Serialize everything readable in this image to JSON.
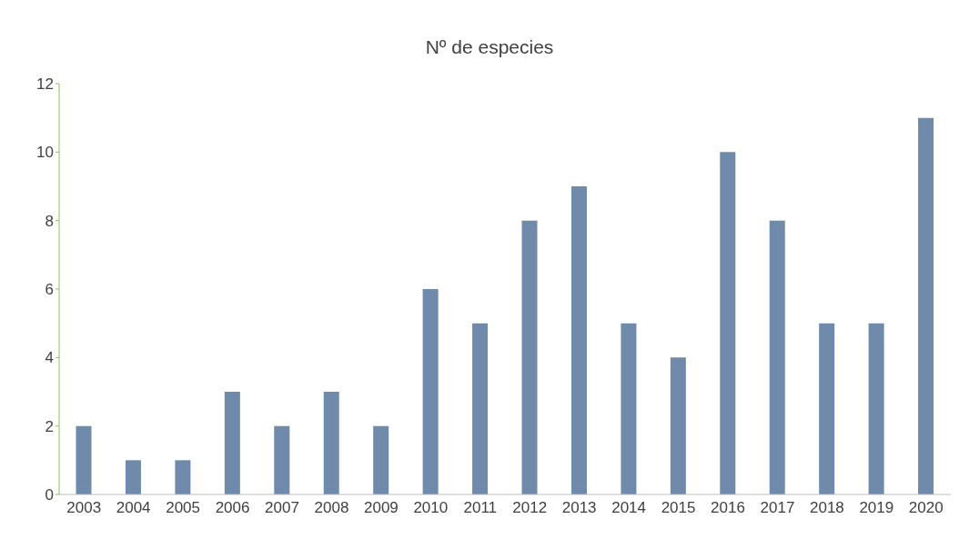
{
  "chart_data": {
    "type": "bar",
    "title": "Nº de especies",
    "categories": [
      "2003",
      "2004",
      "2005",
      "2006",
      "2007",
      "2008",
      "2009",
      "2010",
      "2011",
      "2012",
      "2013",
      "2014",
      "2015",
      "2016",
      "2017",
      "2018",
      "2019",
      "2020"
    ],
    "values": [
      2,
      1,
      1,
      3,
      2,
      3,
      2,
      6,
      5,
      8,
      9,
      5,
      4,
      10,
      8,
      5,
      5,
      11
    ],
    "color": "#6f8aab",
    "ylim": [
      0,
      12
    ],
    "yticks": [
      0,
      2,
      4,
      6,
      8,
      10,
      12
    ]
  }
}
